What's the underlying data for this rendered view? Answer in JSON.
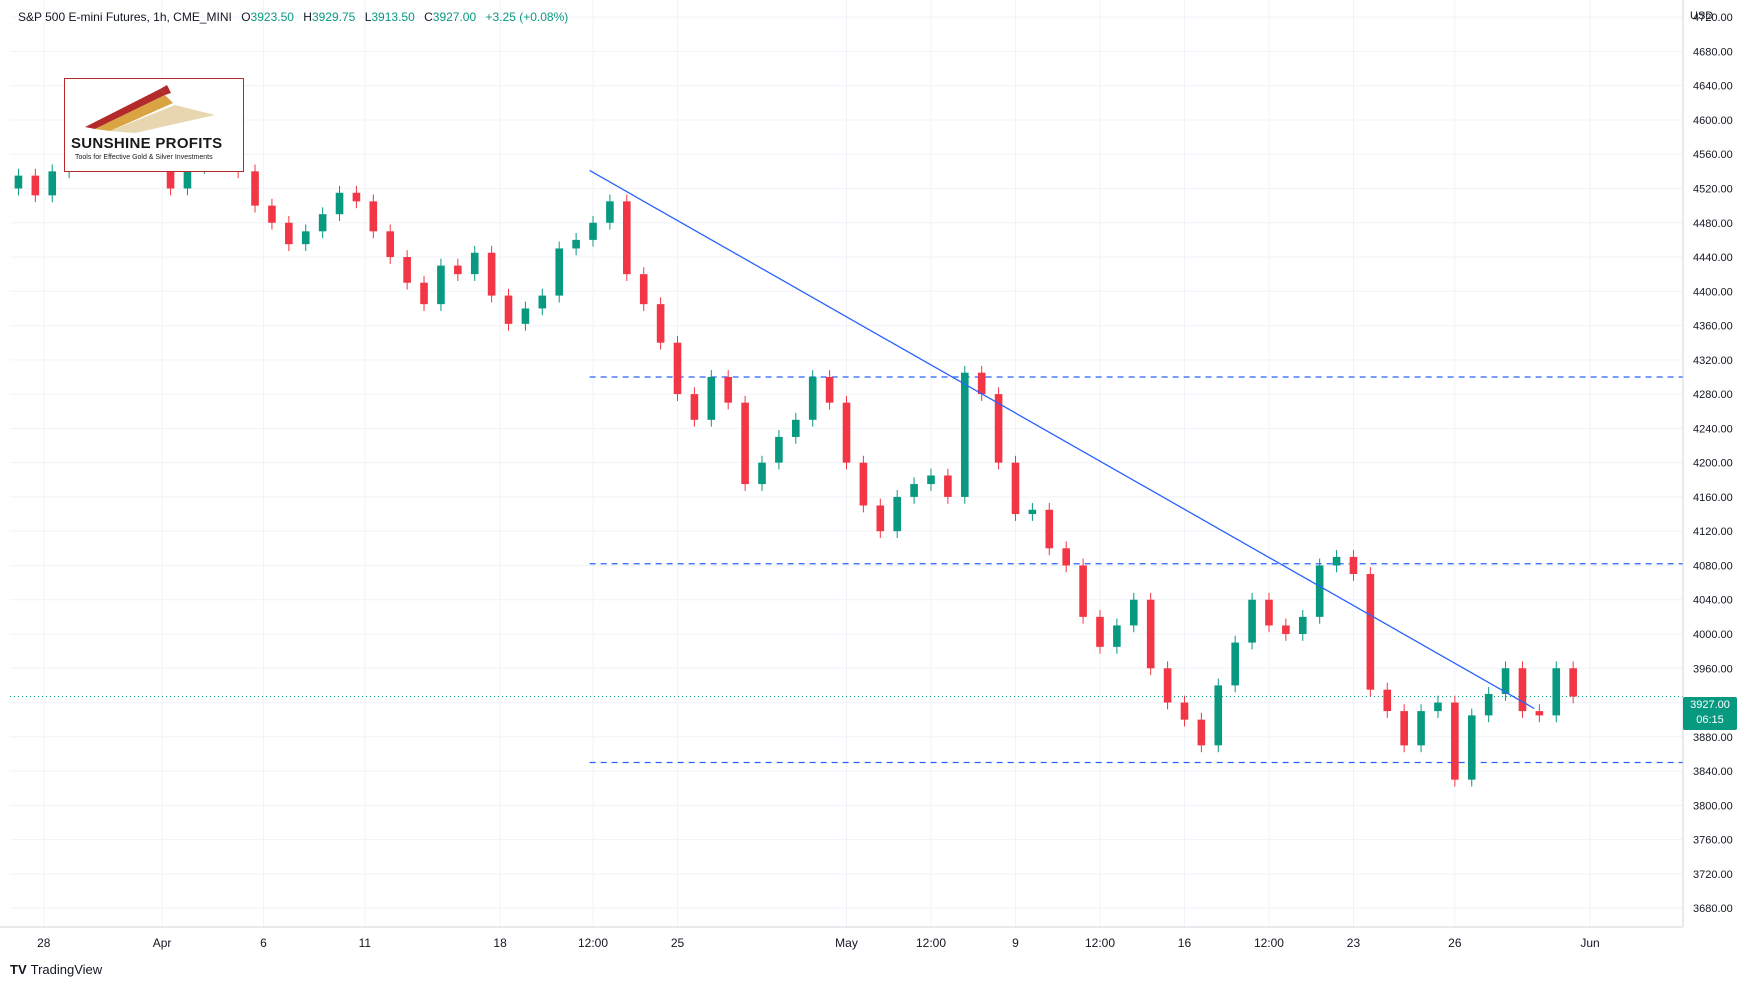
{
  "header": {
    "symbol": "S&P 500 E-mini Futures, 1h, CME_MINI",
    "o_label": "O",
    "o_value": "3923.50",
    "h_label": "H",
    "h_value": "3929.75",
    "l_label": "L",
    "l_value": "3913.50",
    "c_label": "C",
    "c_value": "3927.00",
    "change": "+3.25 (+0.08%)"
  },
  "currency": "USD",
  "last_price": {
    "price": "3927.00",
    "countdown": "06:15"
  },
  "logo": {
    "title": "SUNSHINE PROFITS",
    "subtitle": "Tools for Effective Gold & Silver Investments"
  },
  "branding": {
    "mark": "TV",
    "name": "TradingView"
  },
  "colors": {
    "up": "#089981",
    "down": "#f23645",
    "trendline": "#2962ff",
    "background": "#ffffff"
  },
  "chart_data": {
    "type": "candlestick",
    "title": "S&P 500 E-mini Futures, 1h, CME_MINI",
    "y_ticks": [
      "4720.00",
      "4680.00",
      "4640.00",
      "4600.00",
      "4560.00",
      "4520.00",
      "4480.00",
      "4440.00",
      "4400.00",
      "4360.00",
      "4320.00",
      "4280.00",
      "4240.00",
      "4200.00",
      "4160.00",
      "4120.00",
      "4080.00",
      "4040.00",
      "4000.00",
      "3960.00",
      "3920.00",
      "3880.00",
      "3840.00",
      "3800.00",
      "3760.00",
      "3720.00",
      "3680.00"
    ],
    "y_tick_values": [
      4720,
      4680,
      4640,
      4600,
      4560,
      4520,
      4480,
      4440,
      4400,
      4360,
      4320,
      4280,
      4240,
      4200,
      4160,
      4120,
      4080,
      4040,
      4000,
      3960,
      3920,
      3880,
      3840,
      3800,
      3760,
      3720,
      3680
    ],
    "ylim": [
      3658,
      4740
    ],
    "x_ticks": [
      {
        "label": "28",
        "idx": 2
      },
      {
        "label": "Apr",
        "idx": 9
      },
      {
        "label": "6",
        "idx": 15
      },
      {
        "label": "11",
        "idx": 21
      },
      {
        "label": "18",
        "idx": 29
      },
      {
        "label": "12:00",
        "idx": 34.5
      },
      {
        "label": "25",
        "idx": 39.5
      },
      {
        "label": "May",
        "idx": 49.5
      },
      {
        "label": "12:00",
        "idx": 54.5
      },
      {
        "label": "9",
        "idx": 59.5
      },
      {
        "label": "12:00",
        "idx": 64.5
      },
      {
        "label": "16",
        "idx": 69.5
      },
      {
        "label": "12:00",
        "idx": 74.5
      },
      {
        "label": "23",
        "idx": 79.5
      },
      {
        "label": "26",
        "idx": 85.5
      },
      {
        "label": "Jun",
        "idx": 93.5
      }
    ],
    "xlim": [
      0,
      99
    ],
    "candles": [
      [
        4520,
        4535
      ],
      [
        4535,
        4512
      ],
      [
        4512,
        4540
      ],
      [
        4540,
        4568
      ],
      [
        4568,
        4585
      ],
      [
        4585,
        4578
      ],
      [
        4578,
        4560
      ],
      [
        4560,
        4590
      ],
      [
        4590,
        4555
      ],
      [
        4555,
        4520
      ],
      [
        4520,
        4545
      ],
      [
        4545,
        4580
      ],
      [
        4580,
        4590
      ],
      [
        4590,
        4540
      ],
      [
        4540,
        4500
      ],
      [
        4500,
        4480
      ],
      [
        4480,
        4455
      ],
      [
        4455,
        4470
      ],
      [
        4470,
        4490
      ],
      [
        4490,
        4515
      ],
      [
        4515,
        4505
      ],
      [
        4505,
        4470
      ],
      [
        4470,
        4440
      ],
      [
        4440,
        4410
      ],
      [
        4410,
        4385
      ],
      [
        4385,
        4430
      ],
      [
        4430,
        4420
      ],
      [
        4420,
        4445
      ],
      [
        4445,
        4395
      ],
      [
        4395,
        4362
      ],
      [
        4362,
        4380
      ],
      [
        4380,
        4395
      ],
      [
        4395,
        4450
      ],
      [
        4450,
        4460
      ],
      [
        4460,
        4480
      ],
      [
        4480,
        4505
      ],
      [
        4505,
        4420
      ],
      [
        4420,
        4385
      ],
      [
        4385,
        4340
      ],
      [
        4340,
        4280
      ],
      [
        4280,
        4250
      ],
      [
        4250,
        4300
      ],
      [
        4300,
        4270
      ],
      [
        4270,
        4175
      ],
      [
        4175,
        4200
      ],
      [
        4200,
        4230
      ],
      [
        4230,
        4250
      ],
      [
        4250,
        4300
      ],
      [
        4300,
        4270
      ],
      [
        4270,
        4200
      ],
      [
        4200,
        4150
      ],
      [
        4150,
        4120
      ],
      [
        4120,
        4160
      ],
      [
        4160,
        4175
      ],
      [
        4175,
        4185
      ],
      [
        4185,
        4160
      ],
      [
        4160,
        4305
      ],
      [
        4305,
        4280
      ],
      [
        4280,
        4200
      ],
      [
        4200,
        4140
      ],
      [
        4140,
        4145
      ],
      [
        4145,
        4100
      ],
      [
        4100,
        4080
      ],
      [
        4080,
        4020
      ],
      [
        4020,
        3985
      ],
      [
        3985,
        4010
      ],
      [
        4010,
        4040
      ],
      [
        4040,
        3960
      ],
      [
        3960,
        3920
      ],
      [
        3920,
        3900
      ],
      [
        3900,
        3870
      ],
      [
        3870,
        3940
      ],
      [
        3940,
        3990
      ],
      [
        3990,
        4040
      ],
      [
        4040,
        4010
      ],
      [
        4010,
        4000
      ],
      [
        4000,
        4020
      ],
      [
        4020,
        4080
      ],
      [
        4080,
        4090
      ],
      [
        4090,
        4070
      ],
      [
        4070,
        3935
      ],
      [
        3935,
        3910
      ],
      [
        3910,
        3870
      ],
      [
        3870,
        3910
      ],
      [
        3910,
        3920
      ],
      [
        3920,
        3830
      ],
      [
        3830,
        3905
      ],
      [
        3905,
        3930
      ],
      [
        3930,
        3960
      ],
      [
        3960,
        3910
      ],
      [
        3910,
        3905
      ],
      [
        3905,
        3960
      ],
      [
        3960,
        3927
      ]
    ],
    "trendline": {
      "from": {
        "idx": 34.3,
        "price": 4541
      },
      "to": {
        "idx": 90.2,
        "price": 3913
      }
    },
    "horizontal_levels": [
      {
        "price": 4300,
        "from_idx": 34.3
      },
      {
        "price": 4082,
        "from_idx": 34.3
      },
      {
        "price": 3850,
        "from_idx": 34.3
      }
    ],
    "last_price_line": 3927
  }
}
